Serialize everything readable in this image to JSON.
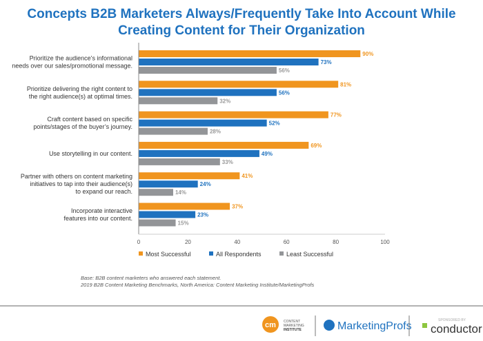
{
  "chart_data": {
    "type": "bar",
    "orientation": "horizontal",
    "title": "Concepts B2B Marketers Always/Frequently Take Into Account While Creating Content for Their Organization",
    "categories": [
      [
        "Prioritize the audience’s informational",
        "needs over our sales/promotional message."
      ],
      [
        "Prioritize delivering the right content to",
        "the right audience(s) at optimal times."
      ],
      [
        "Craft content based on specific",
        "points/stages of the buyer’s journey."
      ],
      [
        "Use storytelling in our content."
      ],
      [
        "Partner with others on content marketing",
        "initiatives to tap into their audience(s)",
        "to expand our reach."
      ],
      [
        "Incorporate interactive",
        "features into our content."
      ]
    ],
    "series": [
      {
        "name": "Most Successful",
        "color": "#f0951f",
        "values": [
          90,
          81,
          77,
          69,
          41,
          37
        ]
      },
      {
        "name": "All Respondents",
        "color": "#1f72bf",
        "values": [
          73,
          56,
          52,
          49,
          24,
          23
        ]
      },
      {
        "name": "Least Successful",
        "color": "#939598",
        "values": [
          56,
          32,
          28,
          33,
          14,
          15
        ]
      }
    ],
    "xlim": [
      0,
      100
    ],
    "xticks": [
      0,
      20,
      40,
      60,
      80,
      100
    ],
    "legend": "bottom",
    "grid": false
  },
  "footnote": {
    "base": "Base: B2B content marketers who answered each statement.",
    "source": "2019 B2B Content Marketing Benchmarks, North America: Content Marketing Institute/MarketingProfs"
  },
  "logos": {
    "cmi": "CONTENT MARKETING INSTITUTE",
    "cmi_mark": "cm",
    "mprofs": "MarketingProfs",
    "sponsored": "SPONSORED BY",
    "conductor": "conductor"
  }
}
